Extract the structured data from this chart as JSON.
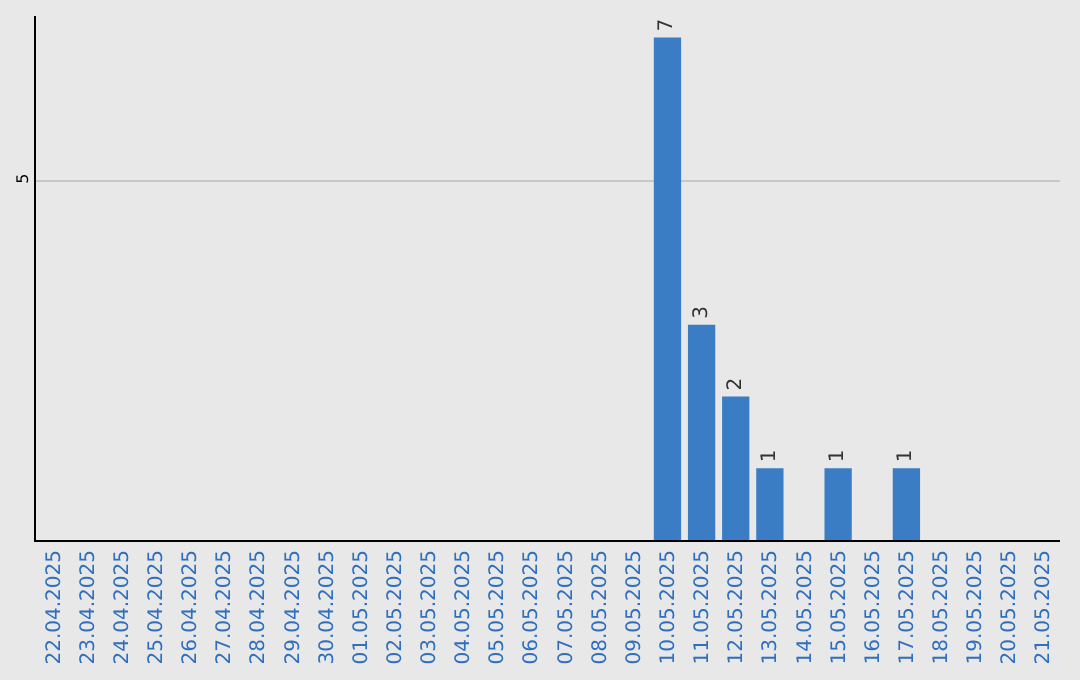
{
  "chart_data": {
    "type": "bar",
    "categories": [
      "22.04.2025",
      "23.04.2025",
      "24.04.2025",
      "25.04.2025",
      "26.04.2025",
      "27.04.2025",
      "28.04.2025",
      "29.04.2025",
      "30.04.2025",
      "01.05.2025",
      "02.05.2025",
      "03.05.2025",
      "04.05.2025",
      "05.05.2025",
      "06.05.2025",
      "07.05.2025",
      "08.05.2025",
      "09.05.2025",
      "10.05.2025",
      "11.05.2025",
      "12.05.2025",
      "13.05.2025",
      "14.05.2025",
      "15.05.2025",
      "16.05.2025",
      "17.05.2025",
      "18.05.2025",
      "19.05.2025",
      "20.05.2025",
      "21.05.2025"
    ],
    "values": [
      null,
      null,
      null,
      null,
      null,
      null,
      null,
      null,
      null,
      null,
      null,
      null,
      null,
      null,
      null,
      null,
      null,
      null,
      7,
      3,
      2,
      1,
      null,
      1,
      null,
      1,
      null,
      null,
      null,
      null
    ],
    "data_labels": true,
    "color": "#3a7dc4",
    "ylim": [
      0,
      7.3
    ],
    "yticks": [
      {
        "value": 0,
        "label": null
      },
      5
    ],
    "grid": "y"
  }
}
